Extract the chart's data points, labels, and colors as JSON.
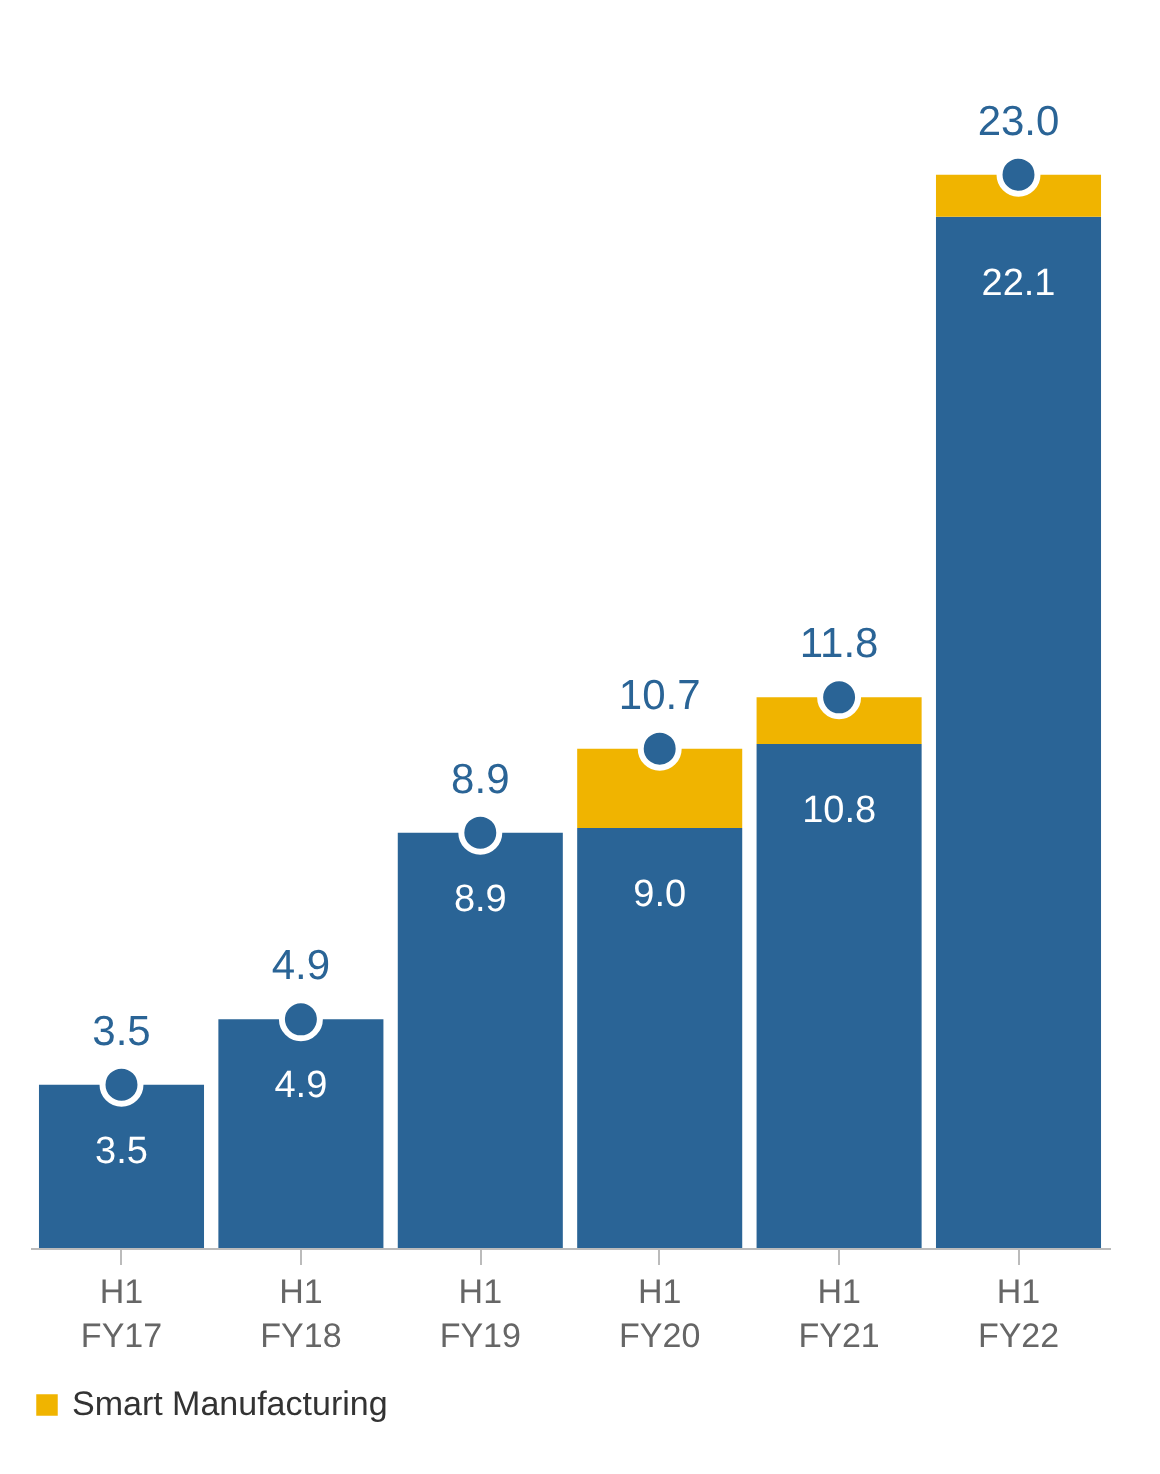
{
  "chart_data": {
    "type": "bar",
    "stacked": true,
    "categories": [
      "H1 FY17",
      "H1 FY18",
      "H1 FY19",
      "H1 FY20",
      "H1 FY21",
      "H1 FY22"
    ],
    "tick_labels": "x",
    "legend": "bottom",
    "marker": "circle",
    "series": [
      {
        "color": "#2a6496",
        "values": [
          3.5,
          4.9,
          8.9,
          9.0,
          10.8,
          22.1
        ],
        "value_labels": [
          "3.5",
          "4.9",
          "8.9",
          "9.0",
          "10.8",
          "22.1"
        ]
      },
      {
        "name": "Smart Manufacturing",
        "color": "#f0b400",
        "values": [
          null,
          null,
          null,
          1.7,
          1.0,
          0.9
        ]
      },
      {
        "type": "scatter",
        "color": "#2a6496",
        "x": [
          "H1 FY17",
          "H1 FY18",
          "H1 FY19",
          "H1 FY20",
          "H1 FY21",
          "H1 FY22"
        ],
        "values": [
          3.5,
          4.9,
          8.9,
          10.7,
          11.8,
          23.0
        ],
        "value_labels": [
          "3.5",
          "4.9",
          "8.9",
          "10.7",
          "11.8",
          "23.0"
        ]
      }
    ]
  }
}
